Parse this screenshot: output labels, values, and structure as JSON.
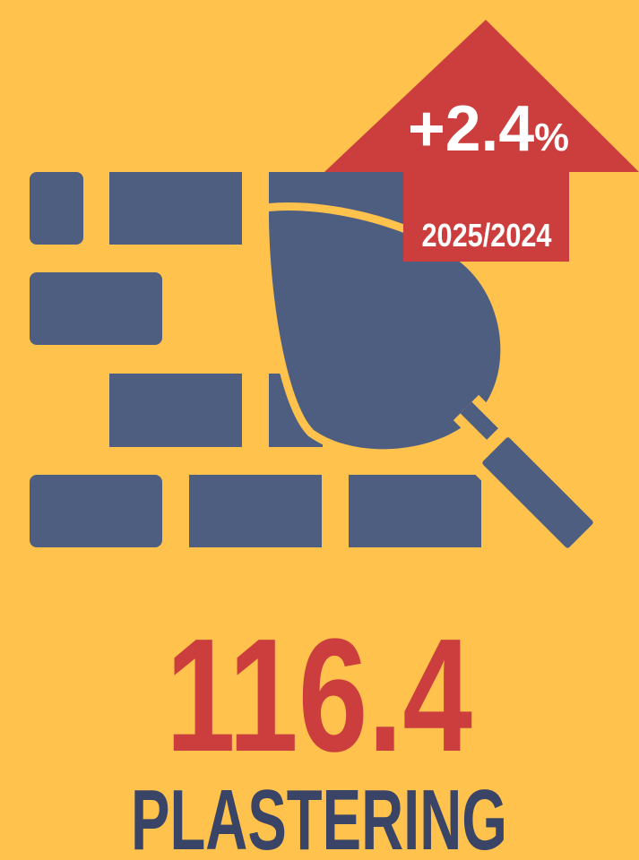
{
  "badge": {
    "change": "+2.4",
    "unit": "%",
    "period": "2025/2024"
  },
  "value": "116.4",
  "label": "PLASTERING"
}
